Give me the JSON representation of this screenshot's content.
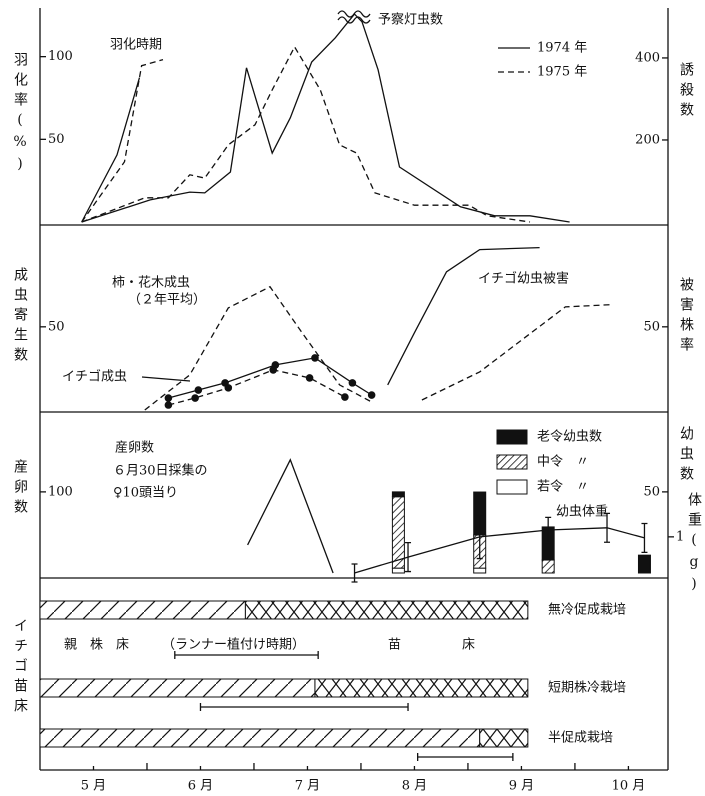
{
  "chart_data": [
    {
      "type": "line",
      "ylabel": "羽化率(%)",
      "y2label": "誘殺数",
      "ylim": [
        0,
        127
      ],
      "yticks": [
        50,
        100
      ],
      "y2lim": [
        0,
        512
      ],
      "y2ticks": [
        200,
        400
      ],
      "annotations": [
        "羽化時期",
        "予察灯虫数"
      ],
      "legend": [
        {
          "label": "1974 年",
          "dash": false
        },
        {
          "label": "1975 年",
          "dash": true
        }
      ],
      "series": [
        {
          "x": [
            5.39,
            5.72,
            5.93
          ],
          "values": [
            0,
            40.6,
            87.3
          ],
          "dash": false,
          "axis": "y"
        },
        {
          "x": [
            5.39,
            5.79,
            5.95,
            6.15
          ],
          "values": [
            0,
            36.4,
            94.5,
            98.2
          ],
          "dash": true,
          "axis": "y"
        },
        {
          "x": [
            5.39,
            6.03,
            6.4,
            6.54,
            6.78,
            6.93,
            7.17,
            7.34,
            7.54,
            7.76,
            7.94,
            8.01,
            8.16,
            8.36,
            8.93,
            9.25,
            9.58,
            9.95
          ],
          "values": [
            0,
            54,
            73,
            71,
            122,
            376,
            168,
            254,
            390,
            449,
            507,
            488,
            371,
            134,
            37,
            15,
            15,
            0
          ],
          "dash": false,
          "axis": "y2"
        },
        {
          "x": [
            5.39,
            5.98,
            6.2,
            6.4,
            6.54,
            6.76,
            7.01,
            7.17,
            7.38,
            7.62,
            7.8,
            7.96,
            8.13,
            8.5,
            9.01,
            9.18,
            9.58
          ],
          "values": [
            0,
            59,
            59,
            115,
            107,
            188,
            237,
            322,
            427,
            322,
            188,
            168,
            71,
            41,
            41,
            15,
            0
          ],
          "dash": true,
          "axis": "y2"
        }
      ]
    },
    {
      "type": "line",
      "ylabel": "成虫寄生数",
      "y2label": "被害株率",
      "ylim": [
        0,
        110
      ],
      "yticks": [
        50
      ],
      "y2lim": [
        0,
        110
      ],
      "y2ticks": [
        50
      ],
      "annotations": [
        "柿・花木成虫",
        "（２年平均）",
        "イチゴ成虫",
        "イチゴ幼虫被害"
      ],
      "series": [
        {
          "x": [
            5.98,
            6.4,
            6.76,
            7.15,
            7.43,
            7.8,
            8.1
          ],
          "values": [
            0,
            21.1,
            61.4,
            74.1,
            48.2,
            15.1,
            4.8
          ],
          "dash": true,
          "axis": "y",
          "markers": false
        },
        {
          "x": [
            6.2,
            6.48,
            6.73,
            7.2,
            7.57,
            7.92,
            8.1
          ],
          "values": [
            7.2,
            12.0,
            16.3,
            27.1,
            31.3,
            16.3,
            9.0
          ],
          "dash": false,
          "axis": "y",
          "markers": true
        },
        {
          "x": [
            6.2,
            6.45,
            6.76,
            7.18,
            7.52,
            7.85
          ],
          "values": [
            3.0,
            7.2,
            13.3,
            24.1,
            19.3,
            7.8
          ],
          "dash": true,
          "axis": "y",
          "markers": true
        },
        {
          "x": [
            8.25,
            8.5,
            8.8,
            9.11,
            9.67
          ],
          "values": [
            15.1,
            46.4,
            83.1,
            96.4,
            97.6
          ],
          "dash": false,
          "axis": "y2",
          "markers": false
        },
        {
          "x": [
            8.57,
            9.11,
            9.91,
            10.33
          ],
          "values": [
            6.0,
            22.9,
            62.0,
            63.3
          ],
          "dash": true,
          "axis": "y2",
          "markers": false
        }
      ]
    },
    {
      "type": "bar_line",
      "ylabel": "産卵数",
      "y2label": "幼虫数",
      "y3label": "体重(g)",
      "ylim": [
        0,
        196
      ],
      "yticks": [
        100
      ],
      "y2lim": [
        0,
        98
      ],
      "y2ticks": [
        50
      ],
      "y3lim": [
        0,
        4.4
      ],
      "y3ticks": [
        1
      ],
      "annotations": [
        "産卵数",
        "６月30日採集の",
        "♀10頭当り",
        "幼虫体重"
      ],
      "eggs": {
        "x": [
          6.94,
          7.34,
          7.74
        ],
        "values": [
          34.6,
          139.5,
          0
        ]
      },
      "bars": {
        "x": [
          8.35,
          9.11,
          9.75,
          10.65
        ],
        "series": [
          {
            "name": "老令幼虫数",
            "pattern": "solid",
            "values": [
              3,
              26.5,
              20.4,
              11
            ]
          },
          {
            "name": "中令　〃",
            "pattern": "hatch",
            "values": [
              44,
              20.4,
              8,
              0
            ]
          },
          {
            "name": "若令　〃",
            "pattern": "none",
            "values": [
              3,
              3,
              0,
              0
            ]
          }
        ]
      },
      "weight": {
        "x": [
          7.94,
          8.44,
          9.11,
          9.75,
          10.3,
          10.65
        ],
        "values": [
          0,
          0.44,
          1.0,
          1.19,
          1.25,
          0.97
        ],
        "errors": [
          0.25,
          0.4,
          0.6,
          0.35,
          0.4,
          0.4
        ]
      }
    },
    {
      "type": "timeline",
      "ylabel": "イチゴ苗床",
      "annotations": [
        "親　株　床",
        "（ランナー植付け時期）",
        "苗",
        "床"
      ],
      "rows": [
        {
          "label": "無冷促成栽培",
          "start": 5.0,
          "switch": 6.92,
          "end": 9.56,
          "period": [
            6.26,
            7.6
          ]
        },
        {
          "label": "短期株冷栽培",
          "start": 5.0,
          "switch": 7.57,
          "end": 9.56,
          "period": [
            6.5,
            8.44
          ]
        },
        {
          "label": "半促成栽培",
          "start": 5.0,
          "switch": 9.11,
          "end": 9.56,
          "period": [
            8.53,
            9.42
          ]
        }
      ],
      "xlim": [
        5,
        10.87
      ],
      "xticks": [
        {
          "value": 5.5,
          "label": "5 月"
        },
        {
          "value": 6.5,
          "label": "6 月"
        },
        {
          "value": 7.5,
          "label": "7 月"
        },
        {
          "value": 8.5,
          "label": "8 月"
        },
        {
          "value": 9.5,
          "label": "9 月"
        },
        {
          "value": 10.5,
          "label": "10 月"
        }
      ],
      "xminorticks": [
        6,
        7,
        8,
        9,
        10
      ]
    }
  ]
}
